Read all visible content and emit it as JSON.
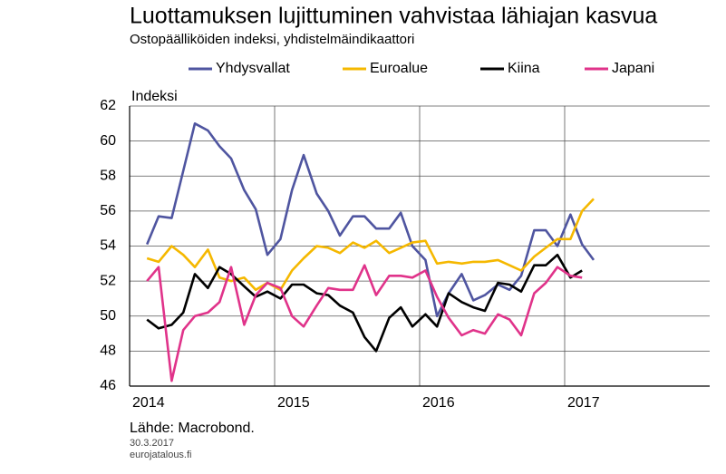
{
  "chart_data": {
    "type": "line",
    "title": "Luottamuksen lujittuminen vahvistaa lähiajan kasvua",
    "subtitle": "Ostopäälliköiden indeksi, yhdistelmäindikaattori",
    "y_label": "Indeksi",
    "source": "Lähde: Macrobond.",
    "date": "30.3.2017",
    "website": "eurojatalous.fi",
    "x": [
      2014.12,
      2014.2,
      2014.29,
      2014.37,
      2014.45,
      2014.54,
      2014.62,
      2014.7,
      2014.79,
      2014.87,
      2014.95,
      2015.04,
      2015.12,
      2015.2,
      2015.29,
      2015.37,
      2015.45,
      2015.54,
      2015.62,
      2015.7,
      2015.79,
      2015.87,
      2015.95,
      2016.04,
      2016.12,
      2016.2,
      2016.29,
      2016.37,
      2016.45,
      2016.54,
      2016.62,
      2016.7,
      2016.79,
      2016.87,
      2016.95,
      2017.04,
      2017.12,
      2017.2
    ],
    "series": [
      {
        "name": "Yhdysvallat",
        "color": "#4f55a0",
        "values": [
          54.1,
          55.7,
          55.6,
          58.3,
          61.0,
          60.6,
          59.7,
          59.0,
          57.2,
          56.1,
          53.5,
          54.4,
          57.2,
          59.2,
          57.0,
          56.0,
          54.6,
          55.7,
          55.7,
          55.0,
          55.0,
          55.9,
          54.0,
          53.2,
          50.0,
          51.3,
          52.4,
          50.9,
          51.2,
          51.8,
          51.5,
          52.3,
          54.9,
          54.9,
          54.0,
          55.8,
          54.1,
          53.2
        ]
      },
      {
        "name": "Euroalue",
        "color": "#f5b800",
        "values": [
          53.3,
          53.1,
          54.0,
          53.5,
          52.8,
          53.8,
          52.2,
          52.0,
          52.2,
          51.5,
          51.9,
          51.5,
          52.6,
          53.3,
          54.0,
          53.9,
          53.6,
          54.2,
          53.9,
          54.3,
          53.6,
          53.9,
          54.2,
          54.3,
          53.0,
          53.1,
          53.0,
          53.1,
          53.1,
          53.2,
          52.9,
          52.6,
          53.4,
          53.9,
          54.4,
          54.4,
          56.0,
          56.7
        ]
      },
      {
        "name": "Kiina",
        "color": "#000000",
        "values": [
          49.8,
          49.3,
          49.5,
          50.2,
          52.4,
          51.6,
          52.8,
          52.4,
          51.7,
          51.1,
          51.4,
          51.0,
          51.8,
          51.8,
          51.3,
          51.2,
          50.6,
          50.2,
          48.8,
          48.0,
          49.9,
          50.5,
          49.4,
          50.1,
          49.4,
          51.3,
          50.8,
          50.5,
          50.3,
          51.9,
          51.8,
          51.4,
          52.9,
          52.9,
          53.5,
          52.2,
          52.6,
          null
        ]
      },
      {
        "name": "Japani",
        "color": "#e0338a",
        "values": [
          52.0,
          52.8,
          46.3,
          49.2,
          50.0,
          50.2,
          50.8,
          52.8,
          49.5,
          51.2,
          51.9,
          51.6,
          50.0,
          49.4,
          50.6,
          51.6,
          51.5,
          51.5,
          52.9,
          51.2,
          52.3,
          52.3,
          52.2,
          52.6,
          51.1,
          49.9,
          48.9,
          49.2,
          49.0,
          50.1,
          49.8,
          48.9,
          51.3,
          51.9,
          52.8,
          52.3,
          52.2,
          null
        ]
      }
    ],
    "xlim": [
      2014,
      2018
    ],
    "xticks": [
      2014,
      2015,
      2016,
      2017
    ],
    "ylim": [
      46,
      62
    ],
    "yticks": [
      46,
      48,
      50,
      52,
      54,
      56,
      58,
      60,
      62
    ],
    "grid": true
  }
}
